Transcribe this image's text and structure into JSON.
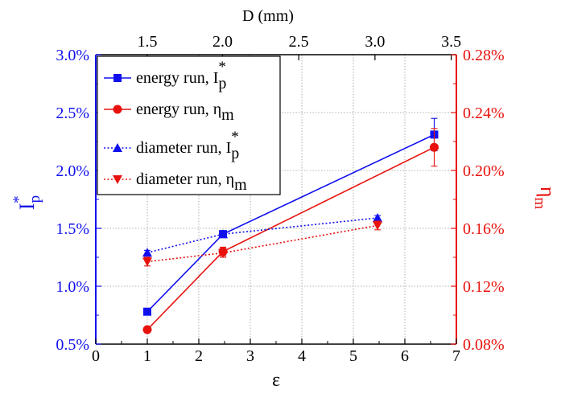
{
  "chart_data": {
    "type": "line",
    "x_axis": {
      "label": "ε",
      "range": [
        0,
        7
      ],
      "ticks": [
        0,
        1,
        2,
        3,
        4,
        5,
        6,
        7
      ],
      "tick_labels": [
        "0",
        "1",
        "2",
        "3",
        "4",
        "5",
        "6",
        "7"
      ]
    },
    "top_axis": {
      "label": "D (mm)",
      "ticks": [
        {
          "label": "1.5",
          "eps": 1.0
        },
        {
          "label": "2.0",
          "eps": 2.46
        },
        {
          "label": "2.5",
          "eps": 3.94
        },
        {
          "label": "3.0",
          "eps": 5.42
        },
        {
          "label": "3.5",
          "eps": 6.9
        }
      ]
    },
    "y_left": {
      "label": "I",
      "label_sub": "p",
      "label_sup": "*",
      "range": [
        0.5,
        3.0
      ],
      "ticks": [
        0.5,
        1.0,
        1.5,
        2.0,
        2.5,
        3.0
      ],
      "tick_labels": [
        "0.5%",
        "1.0%",
        "1.5%",
        "2.0%",
        "2.5%",
        "3.0%"
      ],
      "color": "#1010ee"
    },
    "y_right": {
      "label": "η",
      "label_sub": "m",
      "range": [
        0.08,
        0.28
      ],
      "ticks": [
        0.08,
        0.12,
        0.16,
        0.2,
        0.24,
        0.28
      ],
      "tick_labels": [
        "0.08%",
        "0.12%",
        "0.16%",
        "0.20%",
        "0.24%",
        "0.28%"
      ],
      "color": "#e8120c"
    },
    "grid": true,
    "legend_position": "top-left",
    "series": [
      {
        "name": "energy run, I",
        "name_sub": "p",
        "name_sup": "*",
        "axis": "left",
        "color": "#1010ee",
        "marker": "square",
        "line": "solid",
        "x": [
          1.0,
          2.47,
          6.57
        ],
        "y": [
          0.78,
          1.45,
          2.31
        ],
        "err": [
          0,
          0.03,
          0.14
        ]
      },
      {
        "name": "energy run, η",
        "name_sub": "m",
        "axis": "right",
        "color": "#e8120c",
        "marker": "circle",
        "line": "solid",
        "x": [
          1.0,
          2.47,
          6.57
        ],
        "y": [
          0.09,
          0.144,
          0.216
        ],
        "err": [
          0,
          0.003,
          0.013
        ]
      },
      {
        "name": "diameter run, I",
        "name_sub": "p",
        "name_sup": "*",
        "axis": "left",
        "color": "#1010ee",
        "marker": "triangle-up",
        "line": "dotted",
        "x": [
          1.0,
          2.47,
          5.47
        ],
        "y": [
          1.29,
          1.45,
          1.59
        ],
        "err": [
          0.02,
          0.02,
          0.02
        ]
      },
      {
        "name": "diameter run, η",
        "name_sub": "m",
        "axis": "right",
        "color": "#e8120c",
        "marker": "triangle-down",
        "line": "dotted",
        "x": [
          1.0,
          2.47,
          5.47
        ],
        "y": [
          0.137,
          0.143,
          0.162
        ],
        "err": [
          0.003,
          0.003,
          0.003
        ]
      }
    ]
  }
}
